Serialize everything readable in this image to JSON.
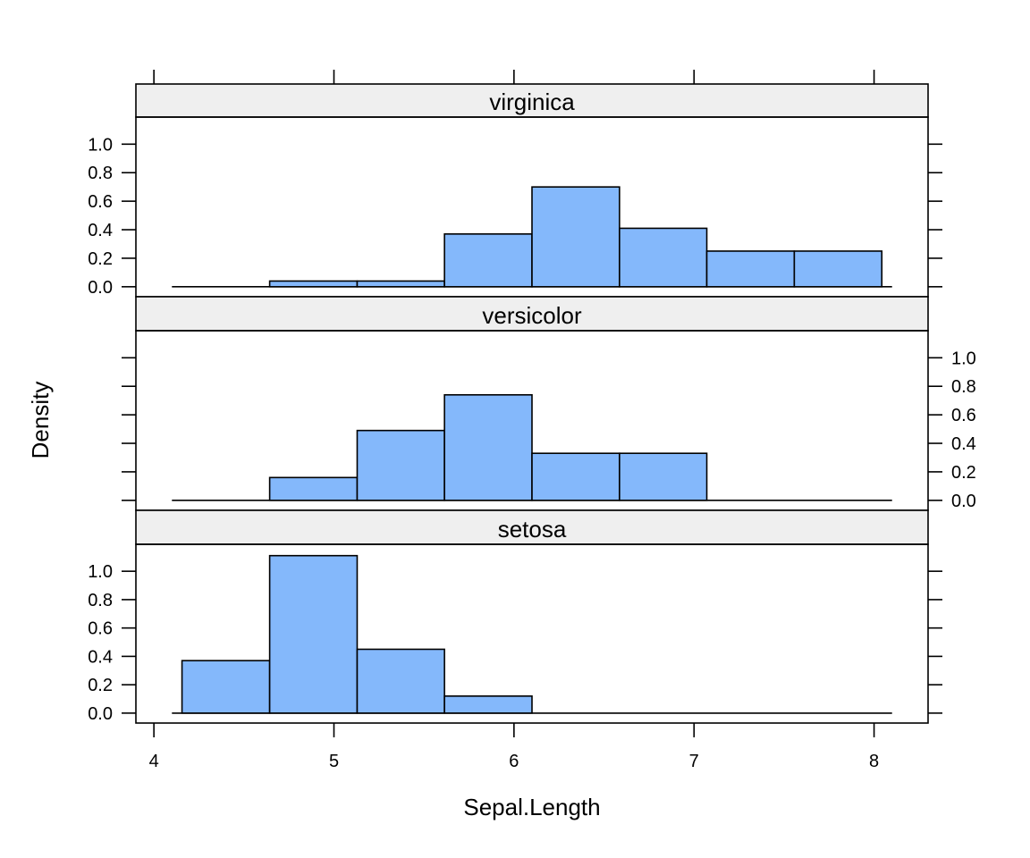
{
  "chart_data": {
    "type": "bar",
    "subtype": "histogram",
    "layout": "lattice-3-panels-stacked",
    "xlabel": "Sepal.Length",
    "ylabel": "Density",
    "xlim": [
      3.9,
      8.3
    ],
    "ylim": [
      -0.07,
      1.19
    ],
    "x_ticks": [
      4,
      5,
      6,
      7,
      8
    ],
    "x_tick_labels": [
      "4",
      "5",
      "6",
      "7",
      "8"
    ],
    "y_ticks": [
      0.0,
      0.2,
      0.4,
      0.6,
      0.8,
      1.0
    ],
    "y_tick_labels": [
      "0.0",
      "0.2",
      "0.4",
      "0.6",
      "0.8",
      "1.0"
    ],
    "bin_edges": [
      4.156,
      4.643,
      5.129,
      5.614,
      6.1,
      6.586,
      7.071,
      7.557,
      8.043
    ],
    "bar_color": "#84b8fb",
    "strip_color": "#efefef",
    "panels": [
      {
        "name": "virginica",
        "y_axis_side": "left",
        "values": [
          0.0,
          0.04,
          0.04,
          0.37,
          0.7,
          0.41,
          0.25,
          0.25
        ]
      },
      {
        "name": "versicolor",
        "y_axis_side": "right",
        "values": [
          0.0,
          0.16,
          0.49,
          0.74,
          0.33,
          0.33,
          0.0,
          0.0
        ]
      },
      {
        "name": "setosa",
        "y_axis_side": "left",
        "values": [
          0.37,
          1.11,
          0.45,
          0.12,
          0.0,
          0.0,
          0.0,
          0.0
        ]
      }
    ]
  }
}
